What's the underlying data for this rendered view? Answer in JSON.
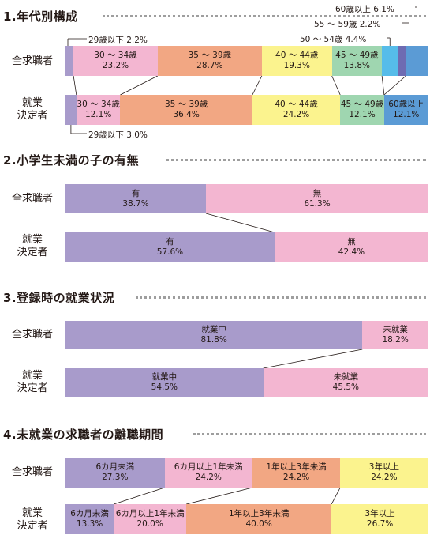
{
  "colors": {
    "purple": "#a89bcb",
    "pink": "#f3b6d1",
    "salmon": "#f2a783",
    "yellow": "#fbf38e",
    "green": "#9fd6b0",
    "light_blue": "#56bce9",
    "indigo": "#6e6bb2",
    "blue": "#5b9bd5",
    "dotted_line": "#9e9e9e",
    "connector": "#231815"
  },
  "row_labels": {
    "all": "全求職者",
    "placed_line1": "就業",
    "placed_line2": "決定者"
  },
  "chart_data": [
    {
      "type": "bar",
      "title": "1.年代別構成",
      "rows": [
        {
          "label": "全求職者",
          "segments": [
            {
              "name": "29歳以下",
              "value": 2.2,
              "label": "",
              "pct": "",
              "color": "purple",
              "callout": "29歳以下 2.2%"
            },
            {
              "name": "30～34歳",
              "value": 23.2,
              "label": "30 ～ 34歳",
              "pct": "23.2%",
              "color": "pink"
            },
            {
              "name": "35～39歳",
              "value": 28.7,
              "label": "35 ～ 39歳",
              "pct": "28.7%",
              "color": "salmon"
            },
            {
              "name": "40～44歳",
              "value": 19.3,
              "label": "40 ～ 44歳",
              "pct": "19.3%",
              "color": "yellow"
            },
            {
              "name": "45～49歳",
              "value": 13.8,
              "label": "45 ～ 49歳",
              "pct": "13.8%",
              "color": "green"
            },
            {
              "name": "50～54歳",
              "value": 4.4,
              "label": "",
              "pct": "",
              "color": "light_blue",
              "callout": "50 ～ 54歳 4.4%"
            },
            {
              "name": "55～59歳",
              "value": 2.2,
              "label": "",
              "pct": "",
              "color": "indigo",
              "callout": "55 ～ 59歳 2.2%"
            },
            {
              "name": "60歳以上",
              "value": 6.1,
              "label": "",
              "pct": "",
              "color": "blue",
              "callout": "60歳以上 6.1%"
            }
          ]
        },
        {
          "label": "就業決定者",
          "segments": [
            {
              "name": "29歳以下",
              "value": 3.0,
              "label": "",
              "pct": "",
              "color": "purple",
              "callout": "29歳以下 3.0%"
            },
            {
              "name": "30～34歳",
              "value": 12.1,
              "label": "30 ～ 34歳",
              "pct": "12.1%",
              "color": "pink"
            },
            {
              "name": "35～39歳",
              "value": 36.4,
              "label": "35 ～ 39歳",
              "pct": "36.4%",
              "color": "salmon"
            },
            {
              "name": "40～44歳",
              "value": 24.2,
              "label": "40 ～ 44歳",
              "pct": "24.2%",
              "color": "yellow"
            },
            {
              "name": "45～49歳",
              "value": 12.1,
              "label": "45 ～ 49歳",
              "pct": "12.1%",
              "color": "green"
            },
            {
              "name": "60歳以上",
              "value": 12.1,
              "label": "60歳以上",
              "pct": "12.1%",
              "color": "blue"
            }
          ]
        }
      ]
    },
    {
      "type": "bar",
      "title": "2.小学生未満の子の有無",
      "rows": [
        {
          "label": "全求職者",
          "segments": [
            {
              "name": "有",
              "value": 38.7,
              "label": "有",
              "pct": "38.7%",
              "color": "purple"
            },
            {
              "name": "無",
              "value": 61.3,
              "label": "無",
              "pct": "61.3%",
              "color": "pink"
            }
          ]
        },
        {
          "label": "就業決定者",
          "segments": [
            {
              "name": "有",
              "value": 57.6,
              "label": "有",
              "pct": "57.6%",
              "color": "purple"
            },
            {
              "name": "無",
              "value": 42.4,
              "label": "無",
              "pct": "42.4%",
              "color": "pink"
            }
          ]
        }
      ]
    },
    {
      "type": "bar",
      "title": "3.登録時の就業状況",
      "rows": [
        {
          "label": "全求職者",
          "segments": [
            {
              "name": "就業中",
              "value": 81.8,
              "label": "就業中",
              "pct": "81.8%",
              "color": "purple"
            },
            {
              "name": "未就業",
              "value": 18.2,
              "label": "未就業",
              "pct": "18.2%",
              "color": "pink"
            }
          ]
        },
        {
          "label": "就業決定者",
          "segments": [
            {
              "name": "就業中",
              "value": 54.5,
              "label": "就業中",
              "pct": "54.5%",
              "color": "purple"
            },
            {
              "name": "未就業",
              "value": 45.5,
              "label": "未就業",
              "pct": "45.5%",
              "color": "pink"
            }
          ]
        }
      ]
    },
    {
      "type": "bar",
      "title": "4.未就業の求職者の離職期間",
      "rows": [
        {
          "label": "全求職者",
          "segments": [
            {
              "name": "6カ月未満",
              "value": 27.3,
              "label": "6カ月未満",
              "pct": "27.3%",
              "color": "purple"
            },
            {
              "name": "6カ月以上1年未満",
              "value": 24.2,
              "label": "6カ月以上1年未満",
              "pct": "24.2%",
              "color": "pink"
            },
            {
              "name": "1年以上3年未満",
              "value": 24.2,
              "label": "1年以上3年未満",
              "pct": "24.2%",
              "color": "salmon"
            },
            {
              "name": "3年以上",
              "value": 24.2,
              "label": "3年以上",
              "pct": "24.2%",
              "color": "yellow"
            }
          ]
        },
        {
          "label": "就業決定者",
          "segments": [
            {
              "name": "6カ月未満",
              "value": 13.3,
              "label": "6カ月未満",
              "pct": "13.3%",
              "color": "purple"
            },
            {
              "name": "6カ月以上1年未満",
              "value": 20.0,
              "label": "6カ月以上1年未満",
              "pct": "20.0%",
              "color": "pink"
            },
            {
              "name": "1年以上3年未満",
              "value": 40.0,
              "label": "1年以上3年未満",
              "pct": "40.0%",
              "color": "salmon"
            },
            {
              "name": "3年以上",
              "value": 26.7,
              "label": "3年以上",
              "pct": "26.7%",
              "color": "yellow"
            }
          ]
        }
      ]
    }
  ]
}
